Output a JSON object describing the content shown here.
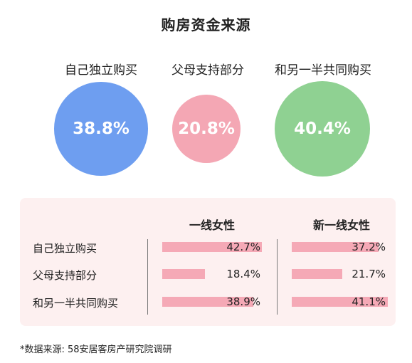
{
  "title": "购房资金来源",
  "circles": [
    {
      "label": "自己独立购买",
      "value": "38.8%",
      "color": "#6e9ef0"
    },
    {
      "label": "父母支持部分",
      "value": "20.8%",
      "color": "#f4a7b4"
    },
    {
      "label": "和另一半共同购买",
      "value": "40.4%",
      "color": "#8fd192"
    }
  ],
  "table": {
    "columns": [
      "一线女性",
      "新一线女性"
    ],
    "rows": [
      {
        "label": "自己独立购买",
        "values": [
          "42.7%",
          "37.2%"
        ]
      },
      {
        "label": "父母支持部分",
        "values": [
          "18.4%",
          "21.7%"
        ]
      },
      {
        "label": "和另一半共同购买",
        "values": [
          "38.9%",
          "41.1%"
        ]
      }
    ],
    "bar_color": "#f5a9b6"
  },
  "footnote": "*数据来源: 58安居客房产研究院调研",
  "chart_data": [
    {
      "type": "bubble",
      "title": "购房资金来源",
      "categories": [
        "自己独立购买",
        "父母支持部分",
        "和另一半共同购买"
      ],
      "values": [
        38.8,
        20.8,
        40.4
      ],
      "unit": "%"
    },
    {
      "type": "bar",
      "categories": [
        "自己独立购买",
        "父母支持部分",
        "和另一半共同购买"
      ],
      "series": [
        {
          "name": "一线女性",
          "values": [
            42.7,
            18.4,
            38.9
          ]
        },
        {
          "name": "新一线女性",
          "values": [
            37.2,
            21.7,
            41.1
          ]
        }
      ],
      "unit": "%"
    }
  ]
}
